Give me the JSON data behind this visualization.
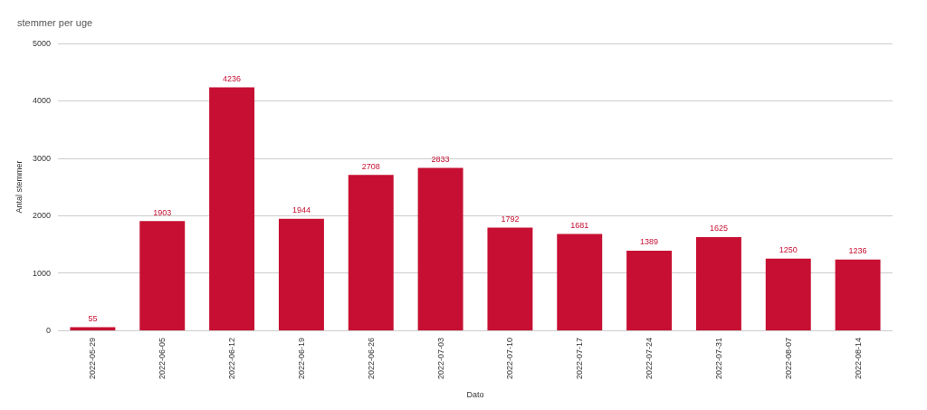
{
  "chart_data": {
    "type": "bar",
    "title": "stemmer per uge",
    "xlabel": "Dato",
    "ylabel": "Antal stemmer",
    "categories": [
      "2022-05-29",
      "2022-06-05",
      "2022-06-12",
      "2022-06-19",
      "2022-06-26",
      "2022-07-03",
      "2022-07-10",
      "2022-07-17",
      "2022-07-24",
      "2022-07-31",
      "2022-08-07",
      "2022-08-14"
    ],
    "values": [
      55,
      1903,
      4236,
      1944,
      2708,
      2833,
      1792,
      1681,
      1389,
      1625,
      1250,
      1236
    ],
    "color": "#c60f32",
    "ylim": [
      0,
      5000
    ],
    "yticks": [
      0,
      1000,
      2000,
      3000,
      4000,
      5000
    ],
    "grid": "y",
    "data_labels": true
  }
}
